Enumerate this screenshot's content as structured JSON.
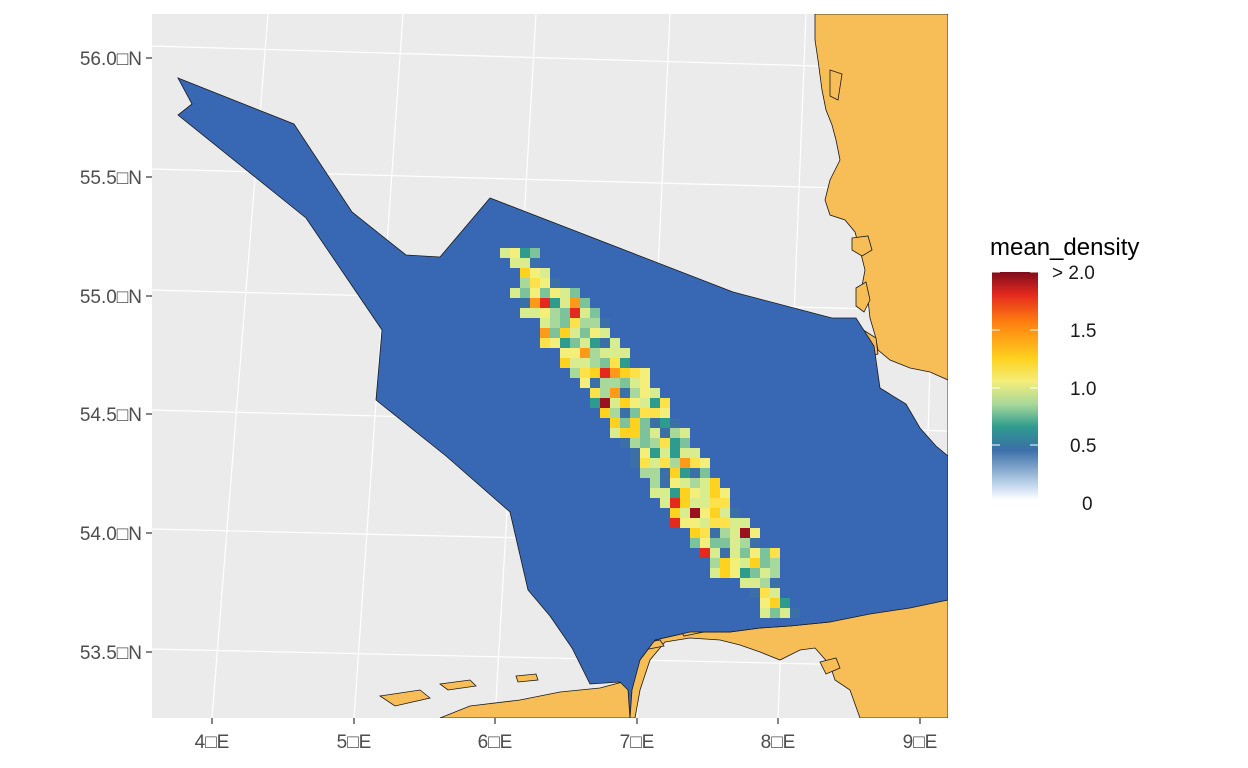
{
  "map": {
    "y_axis_labels": [
      "56.0□N",
      "55.5□N",
      "55.0□N",
      "54.5□N",
      "54.0□N",
      "53.5□N"
    ],
    "x_axis_labels": [
      "4□E",
      "5□E",
      "6□E",
      "7□E",
      "8□E",
      "9□E"
    ]
  },
  "legend": {
    "title": "mean_density",
    "labels": [
      "> 2.0",
      "1.5",
      "1.0",
      "0.5",
      "0"
    ],
    "colors": [
      "#ffffff",
      "#c6dbef",
      "#3b6fa8",
      "#2e9b8f",
      "#a8d89a",
      "#f4ee7a",
      "#ffd21f",
      "#ff7f10",
      "#e4291e",
      "#7e0c1c"
    ]
  },
  "colors": {
    "panel_background": "#ebebeb",
    "gridline": "#ffffff",
    "land": "#f7bd56",
    "study_area": "#3867b3"
  }
}
